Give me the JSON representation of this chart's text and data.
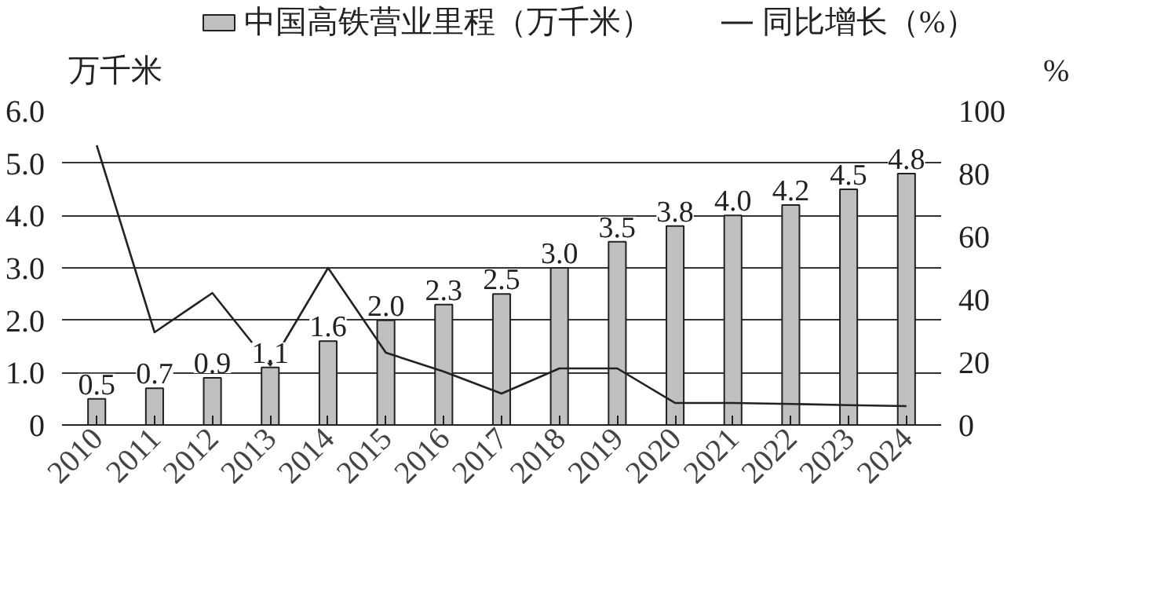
{
  "chart_data": {
    "type": "bar",
    "ylabel": "万千米",
    "y2label": "%",
    "categories": [
      "2010",
      "2011",
      "2012",
      "2013",
      "2014",
      "2015",
      "2016",
      "2017",
      "2018",
      "2019",
      "2020",
      "2021",
      "2022",
      "2023",
      "2024"
    ],
    "series": [
      {
        "name": "中国高铁营业里程（万千米）",
        "color": "#c0c0c0",
        "values": [
          0.5,
          0.7,
          0.9,
          1.1,
          1.6,
          2.0,
          2.3,
          2.5,
          3.0,
          3.5,
          3.8,
          4.0,
          4.2,
          4.5,
          4.8
        ],
        "value_labels": [
          "0.5",
          "0.7",
          "0.9",
          "1.1",
          "1.6",
          "2.0",
          "2.3",
          "2.5",
          "3.0",
          "3.5",
          "3.8",
          "4.0",
          "4.2",
          "4.5",
          "4.8"
        ]
      },
      {
        "name": "同比增长（%）",
        "type": "line",
        "axis": "y2",
        "color": "#222222",
        "values": [
          89,
          29.5,
          42,
          19,
          50,
          23,
          17,
          10,
          18,
          18,
          7,
          7,
          6.7,
          6.3,
          6
        ]
      }
    ],
    "ylim": [
      0,
      6
    ],
    "yticks": [
      {
        "value": 0,
        "label": "0"
      },
      {
        "value": 1,
        "label": "1.0"
      },
      {
        "value": 2,
        "label": "2.0"
      },
      {
        "value": 3,
        "label": "3.0"
      },
      {
        "value": 4,
        "label": "4.0"
      },
      {
        "value": 5,
        "label": "5.0"
      },
      {
        "value": 6,
        "label": "6.0"
      }
    ],
    "y2lim": [
      0,
      100
    ],
    "y2ticks": [
      0,
      20,
      40,
      60,
      80,
      100
    ],
    "grid": "y",
    "legend": "top",
    "line_style": "solid",
    "marker": "none"
  }
}
